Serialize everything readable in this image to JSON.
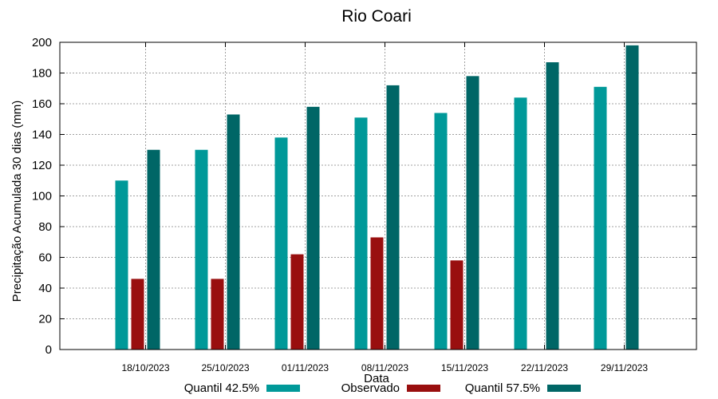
{
  "chart_data": {
    "type": "bar",
    "title": "Rio Coari",
    "xlabel": "Data",
    "ylabel": "Precipitação Acumulada 30 dias (mm)",
    "ylim": [
      0,
      200
    ],
    "yticks": [
      0,
      20,
      40,
      60,
      80,
      100,
      120,
      140,
      160,
      180,
      200
    ],
    "grid": true,
    "legend_position": "bottom",
    "categories": [
      "18/10/2023",
      "25/10/2023",
      "01/11/2023",
      "08/11/2023",
      "15/11/2023",
      "22/11/2023",
      "29/11/2023"
    ],
    "series": [
      {
        "name": "Quantil 42.5%",
        "color": "#009999",
        "values": [
          110,
          130,
          138,
          151,
          154,
          164,
          171
        ]
      },
      {
        "name": "Observado",
        "color": "#990f0f",
        "values": [
          46,
          46,
          62,
          73,
          58,
          null,
          null
        ]
      },
      {
        "name": "Quantil 57.5%",
        "color": "#006666",
        "values": [
          130,
          153,
          158,
          172,
          178,
          187,
          198
        ]
      }
    ]
  }
}
